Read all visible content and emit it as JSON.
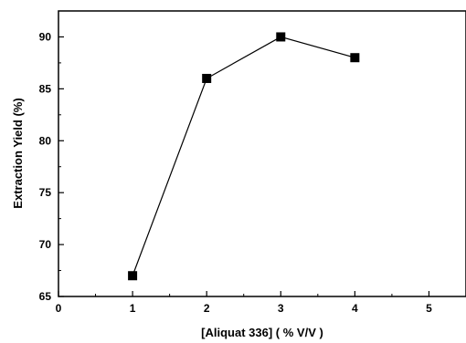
{
  "chart_data": {
    "type": "line",
    "xlabel": "[Aliquat 336] ( % V/V )",
    "ylabel": "Extraction Yield (%)",
    "xlim": [
      0,
      5.5
    ],
    "ylim": [
      65,
      92.5
    ],
    "x_ticks": [
      0,
      1,
      2,
      3,
      4,
      5
    ],
    "y_ticks": [
      65,
      70,
      75,
      80,
      85,
      90
    ],
    "grid": false,
    "series": [
      {
        "x": [
          1,
          2,
          3,
          4
        ],
        "y": [
          67,
          86,
          90,
          88
        ],
        "marker": "square",
        "color": "#000000"
      }
    ]
  }
}
